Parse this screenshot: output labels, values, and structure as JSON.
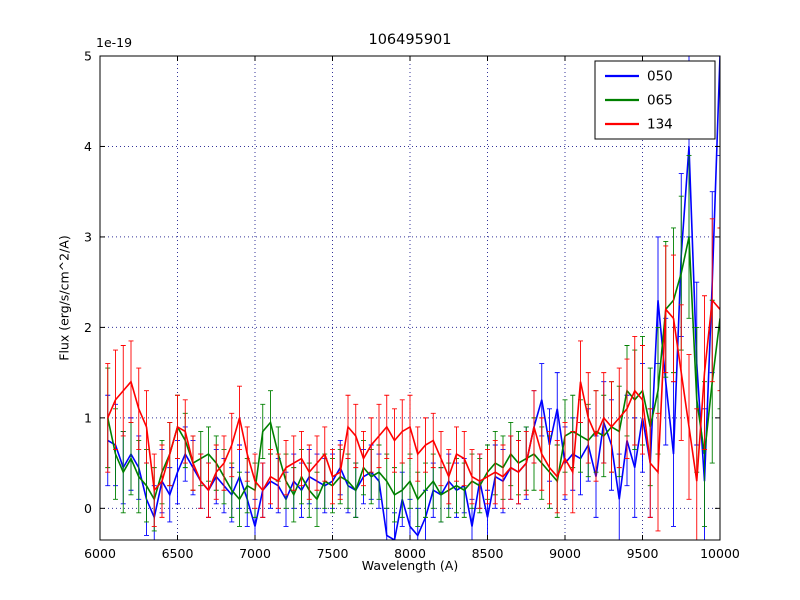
{
  "chart_data": {
    "type": "line",
    "title": "106495901",
    "xlabel": "Wavelength (A)",
    "ylabel": "Flux (erg/s/cm^2/A)",
    "offset_text": "1e-19",
    "xlim": [
      6000,
      10000
    ],
    "ylim": [
      -0.35,
      5
    ],
    "xticks": [
      6000,
      6500,
      7000,
      7500,
      8000,
      8500,
      9000,
      9500,
      10000
    ],
    "yticks": [
      0,
      1,
      2,
      3,
      4,
      5
    ],
    "grid": true,
    "grid_color": "#333399",
    "grid_style": "dotted",
    "legend_position": "upper right",
    "x": [
      6050,
      6100,
      6150,
      6200,
      6250,
      6300,
      6350,
      6400,
      6450,
      6500,
      6550,
      6600,
      6650,
      6700,
      6750,
      6800,
      6850,
      6900,
      6950,
      7000,
      7050,
      7100,
      7150,
      7200,
      7250,
      7300,
      7350,
      7400,
      7450,
      7500,
      7550,
      7600,
      7650,
      7700,
      7750,
      7800,
      7850,
      7900,
      7950,
      8000,
      8050,
      8100,
      8150,
      8200,
      8250,
      8300,
      8350,
      8400,
      8450,
      8500,
      8550,
      8600,
      8650,
      8700,
      8750,
      8800,
      8850,
      8900,
      8950,
      9000,
      9050,
      9100,
      9150,
      9200,
      9250,
      9300,
      9350,
      9400,
      9450,
      9500,
      9550,
      9600,
      9650,
      9700,
      9750,
      9800,
      9850,
      9900,
      9950,
      10000
    ],
    "series": [
      {
        "name": "050",
        "color": "#0000ff",
        "values": [
          0.75,
          0.7,
          0.45,
          0.6,
          0.45,
          0.1,
          -0.1,
          0.3,
          0.15,
          0.4,
          0.6,
          0.45,
          0.3,
          0.2,
          0.35,
          0.25,
          0.15,
          0.35,
          0.1,
          -0.2,
          0.2,
          0.3,
          0.25,
          0.1,
          0.3,
          0.2,
          0.35,
          0.3,
          0.25,
          0.3,
          0.45,
          0.25,
          0.2,
          0.35,
          0.4,
          0.3,
          -0.3,
          -0.35,
          0.1,
          -0.2,
          -0.3,
          -0.1,
          0.2,
          0.15,
          0.3,
          0.2,
          0.25,
          -0.2,
          0.3,
          -0.1,
          0.35,
          0.3,
          0.45,
          0.4,
          0.5,
          0.9,
          1.2,
          0.7,
          1.1,
          0.5,
          0.6,
          0.55,
          0.7,
          0.35,
          0.95,
          0.7,
          0.1,
          0.75,
          0.45,
          1.0,
          0.5,
          2.3,
          1.4,
          0.6,
          2.8,
          4.0,
          1.6,
          0.3,
          2.5,
          5.0
        ],
        "errors": [
          0.5,
          0.45,
          0.4,
          0.4,
          0.35,
          0.4,
          0.35,
          0.35,
          0.3,
          0.35,
          0.3,
          0.3,
          0.3,
          0.3,
          0.3,
          0.3,
          0.3,
          0.35,
          0.3,
          0.3,
          0.3,
          0.3,
          0.3,
          0.3,
          0.3,
          0.3,
          0.3,
          0.3,
          0.3,
          0.3,
          0.3,
          0.3,
          0.3,
          0.3,
          0.3,
          0.3,
          0.3,
          0.3,
          0.3,
          0.3,
          0.3,
          0.3,
          0.3,
          0.3,
          0.3,
          0.3,
          0.3,
          0.3,
          0.3,
          0.3,
          0.35,
          0.35,
          0.35,
          0.35,
          0.4,
          0.4,
          0.4,
          0.4,
          0.4,
          0.4,
          0.4,
          0.4,
          0.4,
          0.45,
          0.45,
          0.5,
          0.5,
          0.5,
          0.55,
          0.6,
          0.6,
          0.7,
          0.7,
          0.8,
          0.9,
          1.0,
          0.9,
          0.8,
          1.0,
          1.1
        ]
      },
      {
        "name": "065",
        "color": "#008000",
        "values": [
          1.0,
          0.6,
          0.4,
          0.55,
          0.35,
          0.25,
          0.1,
          0.4,
          0.6,
          0.9,
          0.75,
          0.5,
          0.55,
          0.6,
          0.5,
          0.35,
          0.2,
          0.1,
          0.25,
          0.2,
          0.85,
          0.95,
          0.6,
          0.3,
          0.15,
          0.35,
          0.2,
          0.1,
          0.3,
          0.25,
          0.35,
          0.3,
          0.2,
          0.45,
          0.35,
          0.4,
          0.3,
          0.15,
          0.2,
          0.3,
          0.1,
          0.2,
          0.3,
          0.15,
          0.2,
          0.25,
          0.2,
          0.3,
          0.25,
          0.4,
          0.5,
          0.45,
          0.6,
          0.5,
          0.55,
          0.6,
          0.5,
          0.4,
          0.3,
          0.8,
          0.85,
          0.8,
          0.75,
          0.85,
          0.8,
          0.9,
          0.85,
          1.3,
          1.2,
          1.3,
          0.9,
          1.3,
          2.2,
          2.3,
          2.6,
          3.0,
          1.2,
          0.6,
          1.4,
          2.1
        ],
        "errors": [
          0.55,
          0.5,
          0.45,
          0.4,
          0.4,
          0.4,
          0.35,
          0.35,
          0.35,
          0.35,
          0.3,
          0.3,
          0.3,
          0.3,
          0.3,
          0.3,
          0.3,
          0.3,
          0.3,
          0.3,
          0.3,
          0.35,
          0.3,
          0.3,
          0.3,
          0.3,
          0.3,
          0.3,
          0.3,
          0.3,
          0.3,
          0.3,
          0.3,
          0.3,
          0.3,
          0.3,
          0.3,
          0.3,
          0.3,
          0.3,
          0.3,
          0.3,
          0.3,
          0.3,
          0.3,
          0.3,
          0.3,
          0.3,
          0.3,
          0.3,
          0.35,
          0.35,
          0.35,
          0.35,
          0.35,
          0.4,
          0.4,
          0.4,
          0.4,
          0.4,
          0.4,
          0.4,
          0.4,
          0.45,
          0.45,
          0.5,
          0.5,
          0.5,
          0.55,
          0.6,
          0.65,
          0.7,
          0.75,
          0.8,
          0.85,
          0.9,
          0.8,
          0.8,
          0.9,
          1.0
        ]
      },
      {
        "name": "134",
        "color": "#ff0000",
        "values": [
          1.0,
          1.2,
          1.3,
          1.4,
          1.1,
          0.9,
          0.2,
          0.3,
          0.6,
          0.9,
          0.85,
          0.5,
          0.3,
          0.2,
          0.4,
          0.5,
          0.7,
          1.0,
          0.6,
          0.3,
          0.2,
          0.35,
          0.3,
          0.45,
          0.5,
          0.55,
          0.4,
          0.5,
          0.6,
          0.35,
          0.4,
          0.9,
          0.8,
          0.55,
          0.7,
          0.8,
          0.9,
          0.75,
          0.85,
          0.9,
          0.6,
          0.7,
          0.75,
          0.55,
          0.35,
          0.6,
          0.55,
          0.35,
          0.3,
          0.35,
          0.4,
          0.35,
          0.45,
          0.4,
          0.5,
          0.9,
          0.6,
          0.45,
          0.35,
          0.55,
          0.4,
          1.4,
          1.0,
          0.8,
          1.0,
          0.9,
          1.0,
          1.1,
          1.3,
          1.2,
          0.5,
          0.4,
          2.2,
          2.1,
          1.5,
          0.9,
          0.3,
          1.5,
          2.3,
          2.2
        ],
        "errors": [
          0.6,
          0.55,
          0.5,
          0.45,
          0.45,
          0.4,
          0.4,
          0.4,
          0.35,
          0.35,
          0.35,
          0.3,
          0.3,
          0.3,
          0.3,
          0.3,
          0.35,
          0.35,
          0.3,
          0.3,
          0.3,
          0.3,
          0.3,
          0.3,
          0.3,
          0.3,
          0.3,
          0.3,
          0.3,
          0.3,
          0.3,
          0.35,
          0.35,
          0.3,
          0.3,
          0.35,
          0.35,
          0.35,
          0.35,
          0.35,
          0.3,
          0.3,
          0.3,
          0.3,
          0.3,
          0.3,
          0.3,
          0.3,
          0.3,
          0.3,
          0.35,
          0.35,
          0.35,
          0.35,
          0.35,
          0.4,
          0.4,
          0.4,
          0.4,
          0.4,
          0.45,
          0.45,
          0.5,
          0.5,
          0.5,
          0.5,
          0.55,
          0.55,
          0.6,
          0.6,
          0.6,
          0.65,
          0.7,
          0.7,
          0.75,
          0.8,
          0.8,
          0.85,
          0.9,
          0.9
        ]
      }
    ]
  }
}
